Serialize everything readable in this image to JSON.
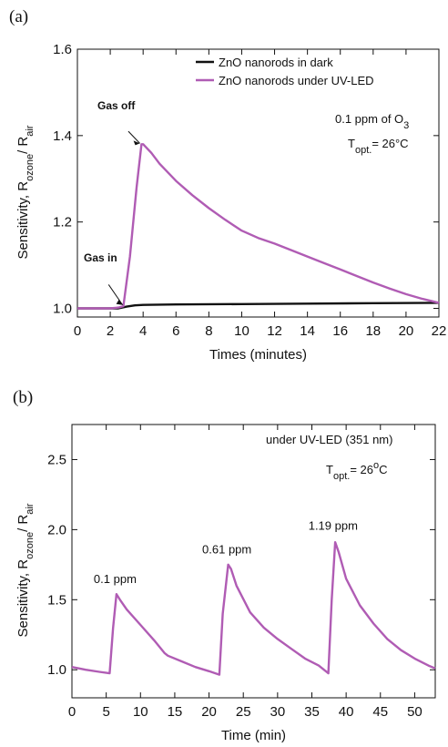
{
  "chart_data": [
    {
      "type": "line",
      "panel_label": "(a)",
      "xlabel": "Times (minutes)",
      "ylabel_parts": [
        "Sensitivity, R",
        "ozone",
        "/ R",
        "air"
      ],
      "xlim": [
        0,
        22
      ],
      "ylim": [
        0.98,
        1.6
      ],
      "x_ticks": [
        "0",
        "2",
        "4",
        "6",
        "8",
        "10",
        "12",
        "14",
        "16",
        "18",
        "20",
        "22"
      ],
      "y_ticks": [
        "1.0",
        "1.2",
        "1.4",
        "1.6"
      ],
      "legend_position": "top-right",
      "annotation_conc": [
        "0.1 ppm of O",
        "3"
      ],
      "annotation_temp": [
        "T",
        "opt.",
        "= 26°C"
      ],
      "arrow_labels": {
        "gas_in": "Gas in",
        "gas_off": "Gas off"
      },
      "series": [
        {
          "name": "ZnO nanorods in dark",
          "color": "#111111",
          "points": [
            [
              0,
              1.0
            ],
            [
              2.5,
              1.0
            ],
            [
              3.0,
              1.004
            ],
            [
              3.5,
              1.007
            ],
            [
              4.0,
              1.008
            ],
            [
              6,
              1.009
            ],
            [
              10,
              1.01
            ],
            [
              14,
              1.011
            ],
            [
              18,
              1.012
            ],
            [
              22,
              1.013
            ]
          ]
        },
        {
          "name": "ZnO nanorods under UV-LED",
          "color": "#b05cb4",
          "points": [
            [
              0,
              1.0
            ],
            [
              2.0,
              1.0
            ],
            [
              2.5,
              1.002
            ],
            [
              2.8,
              1.005
            ],
            [
              3.2,
              1.12
            ],
            [
              3.6,
              1.28
            ],
            [
              3.9,
              1.38
            ],
            [
              4.0,
              1.38
            ],
            [
              4.5,
              1.36
            ],
            [
              5,
              1.335
            ],
            [
              6,
              1.295
            ],
            [
              7,
              1.262
            ],
            [
              8,
              1.232
            ],
            [
              9,
              1.205
            ],
            [
              10,
              1.18
            ],
            [
              11,
              1.163
            ],
            [
              12,
              1.15
            ],
            [
              13,
              1.135
            ],
            [
              14,
              1.12
            ],
            [
              15,
              1.105
            ],
            [
              16,
              1.09
            ],
            [
              17,
              1.075
            ],
            [
              18,
              1.06
            ],
            [
              19,
              1.046
            ],
            [
              20,
              1.033
            ],
            [
              21,
              1.022
            ],
            [
              22,
              1.013
            ]
          ]
        }
      ]
    },
    {
      "type": "line",
      "panel_label": "(b)",
      "xlabel": "Time (min)",
      "ylabel_parts": [
        "Sensitivity, R",
        "ozone",
        "/ R",
        "air"
      ],
      "xlim": [
        0,
        53
      ],
      "ylim": [
        0.8,
        2.75
      ],
      "x_ticks": [
        "0",
        "5",
        "10",
        "15",
        "20",
        "25",
        "30",
        "35",
        "40",
        "45",
        "50"
      ],
      "y_ticks": [
        "1.0",
        "1.5",
        "2.0",
        "2.5"
      ],
      "annotation_cond": "under UV-LED (351 nm)",
      "annotation_temp": [
        "T",
        "opt.",
        "= 26",
        "o",
        "C"
      ],
      "peak_labels": [
        {
          "text": "0.1 ppm",
          "x": 6.3,
          "y": 1.62
        },
        {
          "text": "0.61 ppm",
          "x": 22.6,
          "y": 1.83
        },
        {
          "text": "1.19 ppm",
          "x": 38.1,
          "y": 2.0
        }
      ],
      "series": [
        {
          "name": "",
          "color": "#b05cb4",
          "points": [
            [
              0,
              1.02
            ],
            [
              2,
              1.0
            ],
            [
              4,
              0.985
            ],
            [
              5.5,
              0.975
            ],
            [
              6.0,
              1.3
            ],
            [
              6.5,
              1.54
            ],
            [
              7,
              1.5
            ],
            [
              8,
              1.43
            ],
            [
              10,
              1.32
            ],
            [
              12,
              1.21
            ],
            [
              13.5,
              1.12
            ],
            [
              14,
              1.1
            ],
            [
              16,
              1.06
            ],
            [
              18,
              1.02
            ],
            [
              20,
              0.99
            ],
            [
              21.5,
              0.965
            ],
            [
              22.0,
              1.4
            ],
            [
              22.8,
              1.75
            ],
            [
              23.2,
              1.72
            ],
            [
              24,
              1.6
            ],
            [
              26,
              1.41
            ],
            [
              28,
              1.3
            ],
            [
              30,
              1.22
            ],
            [
              32,
              1.15
            ],
            [
              34,
              1.08
            ],
            [
              36,
              1.03
            ],
            [
              37.4,
              0.975
            ],
            [
              37.9,
              1.5
            ],
            [
              38.4,
              1.91
            ],
            [
              38.9,
              1.84
            ],
            [
              40,
              1.65
            ],
            [
              42,
              1.46
            ],
            [
              44,
              1.33
            ],
            [
              46,
              1.22
            ],
            [
              48,
              1.14
            ],
            [
              50,
              1.08
            ],
            [
              52,
              1.03
            ],
            [
              53,
              1.01
            ]
          ]
        }
      ]
    }
  ]
}
